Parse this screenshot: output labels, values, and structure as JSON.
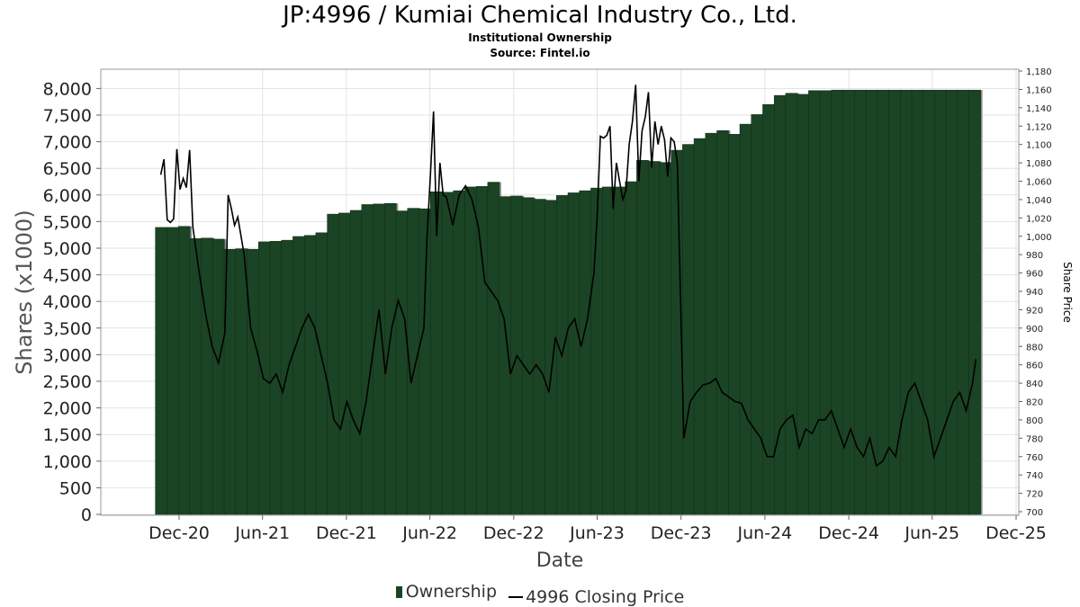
{
  "header": {
    "title": "JP:4996 / Kumiai Chemical Industry Co., Ltd.",
    "subtitle1": "Institutional Ownership",
    "subtitle2": "Source: Fintel.io"
  },
  "legend": {
    "ownership": "Ownership",
    "price": "4996 Closing Price"
  },
  "colors": {
    "bar": "#1b4424",
    "bar_shadow": "#8f8f8f",
    "line": "#000000",
    "grid": "#e2e2e2"
  },
  "chart_data": {
    "type": "bar",
    "xlabel": "Date",
    "ylabel": "Shares (x1000)",
    "y2label": "Share Price",
    "ylim": [
      0,
      8300
    ],
    "y2lim": [
      698,
      1181
    ],
    "xlim": [
      "2020-09-01",
      "2025-12-31"
    ],
    "x_ticks": [
      {
        "label": "Dec-20",
        "date": "2020-12-01"
      },
      {
        "label": "Jun-21",
        "date": "2021-06-01"
      },
      {
        "label": "Dec-21",
        "date": "2021-12-01"
      },
      {
        "label": "Jun-22",
        "date": "2022-06-01"
      },
      {
        "label": "Dec-22",
        "date": "2022-12-01"
      },
      {
        "label": "Jun-23",
        "date": "2023-06-01"
      },
      {
        "label": "Dec-23",
        "date": "2023-12-01"
      },
      {
        "label": "Jun-24",
        "date": "2024-06-01"
      },
      {
        "label": "Dec-24",
        "date": "2024-12-01"
      },
      {
        "label": "Jun-25",
        "date": "2025-06-01"
      },
      {
        "label": "Dec-25",
        "date": "2025-12-01"
      }
    ],
    "y_ticks": [
      {
        "label": "8,000",
        "value": 8000
      },
      {
        "label": "7,500",
        "value": 7500
      },
      {
        "label": "7,000",
        "value": 7000
      },
      {
        "label": "6,500",
        "value": 6500
      },
      {
        "label": "6,000",
        "value": 6000
      },
      {
        "label": "5,500",
        "value": 5500
      },
      {
        "label": "5,000",
        "value": 5000
      },
      {
        "label": "4,500",
        "value": 4500
      },
      {
        "label": "4,000",
        "value": 4000
      },
      {
        "label": "3,500",
        "value": 3500
      },
      {
        "label": "3,000",
        "value": 3000
      },
      {
        "label": "2,500",
        "value": 2500
      },
      {
        "label": "2,000",
        "value": 2000
      },
      {
        "label": "1,500",
        "value": 1500
      },
      {
        "label": "1,000",
        "value": 1000
      },
      {
        "label": "500",
        "value": 500
      },
      {
        "label": "0",
        "value": 0
      }
    ],
    "y2_ticks": [
      {
        "label": "1,180",
        "value": 1180
      },
      {
        "label": "1,160",
        "value": 1160
      },
      {
        "label": "1,140",
        "value": 1140
      },
      {
        "label": "1,120",
        "value": 1120
      },
      {
        "label": "1,100",
        "value": 1100
      },
      {
        "label": "1,080",
        "value": 1080
      },
      {
        "label": "1,060",
        "value": 1060
      },
      {
        "label": "1,040",
        "value": 1040
      },
      {
        "label": "1,020",
        "value": 1020
      },
      {
        "label": "1,000",
        "value": 1000
      },
      {
        "label": "980",
        "value": 980
      },
      {
        "label": "960",
        "value": 960
      },
      {
        "label": "940",
        "value": 940
      },
      {
        "label": "920",
        "value": 920
      },
      {
        "label": "900",
        "value": 900
      },
      {
        "label": "880",
        "value": 880
      },
      {
        "label": "860",
        "value": 860
      },
      {
        "label": "840",
        "value": 840
      },
      {
        "label": "820",
        "value": 820
      },
      {
        "label": "800",
        "value": 800
      },
      {
        "label": "780",
        "value": 780
      },
      {
        "label": "760",
        "value": 760
      },
      {
        "label": "740",
        "value": 740
      },
      {
        "label": "720",
        "value": 720
      },
      {
        "label": "700",
        "value": 700
      }
    ],
    "series": [
      {
        "name": "Ownership",
        "type": "bar",
        "axis": "left",
        "x": [
          "2020-10-23",
          "2020-11-17",
          "2020-12-12",
          "2021-01-06",
          "2021-01-31",
          "2021-02-25",
          "2021-03-22",
          "2021-04-16",
          "2021-05-11",
          "2021-06-05",
          "2021-06-30",
          "2021-07-25",
          "2021-08-19",
          "2021-09-13",
          "2021-10-08",
          "2021-11-02",
          "2021-11-27",
          "2021-12-22",
          "2022-01-16",
          "2022-02-10",
          "2022-03-07",
          "2022-04-01",
          "2022-04-26",
          "2022-05-21",
          "2022-06-15",
          "2022-07-10",
          "2022-08-04",
          "2022-08-29",
          "2022-09-23",
          "2022-10-18",
          "2022-11-12",
          "2022-12-07",
          "2023-01-01",
          "2023-01-26",
          "2023-02-20",
          "2023-03-17",
          "2023-04-11",
          "2023-05-06",
          "2023-05-31",
          "2023-06-25",
          "2023-07-20",
          "2023-08-14",
          "2023-09-08",
          "2023-10-03",
          "2023-10-28",
          "2023-11-22",
          "2023-12-17",
          "2024-01-11",
          "2024-02-05",
          "2024-03-01",
          "2024-03-26",
          "2024-04-20",
          "2024-05-15",
          "2024-06-09",
          "2024-07-04",
          "2024-07-29",
          "2024-08-23",
          "2024-09-17",
          "2024-10-12",
          "2024-11-06",
          "2024-12-01",
          "2024-12-26",
          "2025-01-20",
          "2025-02-14",
          "2025-03-11",
          "2025-04-05",
          "2025-04-30",
          "2025-05-25",
          "2025-06-19",
          "2025-07-14",
          "2025-08-08",
          "2025-09-02"
        ],
        "values": [
          5390,
          5390,
          5410,
          5180,
          5190,
          5170,
          4980,
          4990,
          4980,
          5120,
          5130,
          5150,
          5220,
          5240,
          5290,
          5640,
          5660,
          5710,
          5820,
          5830,
          5840,
          5700,
          5750,
          5740,
          6060,
          6050,
          6080,
          6150,
          6160,
          6240,
          5970,
          5980,
          5950,
          5920,
          5900,
          5990,
          6040,
          6080,
          6130,
          6150,
          6150,
          6250,
          6650,
          6630,
          6610,
          6840,
          6950,
          7060,
          7160,
          7210,
          7140,
          7330,
          7510,
          7700,
          7870,
          7910,
          7890,
          7960,
          7960,
          7970,
          7970,
          7970,
          7970,
          7970,
          7970,
          7970,
          7970,
          7970,
          7970,
          7970,
          7970,
          7970
        ]
      },
      {
        "name": "4996 Closing Price",
        "type": "line",
        "axis": "right",
        "x": [
          "2020-10-22",
          "2020-10-29",
          "2020-11-05",
          "2020-11-12",
          "2020-11-19",
          "2020-11-26",
          "2020-12-03",
          "2020-12-10",
          "2020-12-17",
          "2020-12-24",
          "2020-12-31",
          "2021-01-14",
          "2021-01-28",
          "2021-02-11",
          "2021-02-25",
          "2021-03-11",
          "2021-03-18",
          "2021-03-25",
          "2021-04-01",
          "2021-04-08",
          "2021-04-22",
          "2021-05-06",
          "2021-05-20",
          "2021-06-03",
          "2021-06-17",
          "2021-07-01",
          "2021-07-15",
          "2021-07-29",
          "2021-08-12",
          "2021-08-26",
          "2021-09-09",
          "2021-09-23",
          "2021-10-07",
          "2021-10-21",
          "2021-11-04",
          "2021-11-18",
          "2021-12-02",
          "2021-12-16",
          "2021-12-30",
          "2022-01-13",
          "2022-01-27",
          "2022-02-10",
          "2022-02-24",
          "2022-03-10",
          "2022-03-24",
          "2022-04-07",
          "2022-04-21",
          "2022-05-05",
          "2022-05-19",
          "2022-05-26",
          "2022-06-02",
          "2022-06-09",
          "2022-06-16",
          "2022-06-23",
          "2022-06-30",
          "2022-07-07",
          "2022-07-21",
          "2022-08-04",
          "2022-08-18",
          "2022-09-01",
          "2022-09-15",
          "2022-09-29",
          "2022-10-13",
          "2022-10-27",
          "2022-11-10",
          "2022-11-24",
          "2022-12-08",
          "2022-12-22",
          "2023-01-05",
          "2023-01-19",
          "2023-02-02",
          "2023-02-16",
          "2023-03-02",
          "2023-03-16",
          "2023-03-30",
          "2023-04-13",
          "2023-04-27",
          "2023-05-11",
          "2023-05-25",
          "2023-06-01",
          "2023-06-08",
          "2023-06-15",
          "2023-06-22",
          "2023-06-29",
          "2023-07-06",
          "2023-07-13",
          "2023-07-20",
          "2023-07-27",
          "2023-08-03",
          "2023-08-10",
          "2023-08-17",
          "2023-08-24",
          "2023-08-31",
          "2023-09-07",
          "2023-09-14",
          "2023-09-21",
          "2023-09-28",
          "2023-10-05",
          "2023-10-12",
          "2023-10-19",
          "2023-10-26",
          "2023-11-02",
          "2023-11-09",
          "2023-11-16",
          "2023-11-23",
          "2023-12-07",
          "2023-12-21",
          "2024-01-04",
          "2024-01-18",
          "2024-02-01",
          "2024-02-15",
          "2024-02-29",
          "2024-03-14",
          "2024-03-28",
          "2024-04-11",
          "2024-04-25",
          "2024-05-09",
          "2024-05-23",
          "2024-06-06",
          "2024-06-20",
          "2024-07-04",
          "2024-07-18",
          "2024-08-01",
          "2024-08-15",
          "2024-08-29",
          "2024-09-12",
          "2024-09-26",
          "2024-10-10",
          "2024-10-24",
          "2024-11-07",
          "2024-11-21",
          "2024-12-05",
          "2024-12-19",
          "2025-01-02",
          "2025-01-16",
          "2025-01-30",
          "2025-02-13",
          "2025-02-27",
          "2025-03-13",
          "2025-03-27",
          "2025-04-10",
          "2025-04-24",
          "2025-05-08",
          "2025-05-22",
          "2025-06-05",
          "2025-06-19",
          "2025-07-03",
          "2025-07-17",
          "2025-07-31",
          "2025-08-14",
          "2025-08-28",
          "2025-09-04"
        ],
        "values": [
          1067,
          1084,
          1018,
          1015,
          1019,
          1095,
          1051,
          1063,
          1053,
          1094,
          1010,
          960,
          915,
          880,
          862,
          895,
          1045,
          1030,
          1012,
          1021,
          980,
          900,
          875,
          845,
          840,
          850,
          830,
          860,
          880,
          900,
          915,
          900,
          870,
          840,
          800,
          790,
          820,
          800,
          785,
          820,
          870,
          920,
          850,
          900,
          930,
          910,
          840,
          870,
          900,
          1000,
          1064,
          1136,
          1000,
          1080,
          1045,
          1043,
          1012,
          1045,
          1055,
          1040,
          1010,
          950,
          940,
          930,
          910,
          850,
          870,
          860,
          850,
          860,
          850,
          830,
          890,
          870,
          900,
          910,
          880,
          910,
          960,
          1021,
          1109,
          1107,
          1110,
          1120,
          1030,
          1080,
          1060,
          1040,
          1050,
          1100,
          1125,
          1165,
          1060,
          1115,
          1130,
          1157,
          1075,
          1125,
          1100,
          1120,
          1105,
          1065,
          1107,
          1103,
          1080,
          780,
          820,
          830,
          838,
          840,
          845,
          830,
          825,
          820,
          818,
          800,
          790,
          780,
          760,
          760,
          790,
          800,
          805,
          770,
          790,
          785,
          800,
          800,
          810,
          790,
          770,
          790,
          770,
          760,
          780,
          750,
          755,
          770,
          760,
          800,
          830,
          840,
          820,
          800,
          760,
          780,
          800,
          820,
          830,
          810,
          840,
          866
        ]
      }
    ]
  }
}
